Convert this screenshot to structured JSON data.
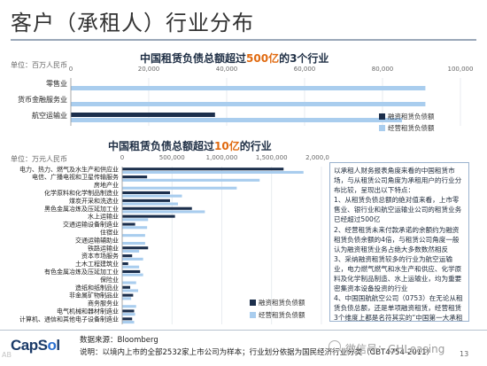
{
  "page": {
    "title": "客户（承租人）行业分布",
    "page_number": "13"
  },
  "chart_data": [
    {
      "type": "bar",
      "orientation": "horizontal",
      "stacked": false,
      "title_parts": [
        "中国租赁负债总额超过",
        "500亿",
        "的3个行业"
      ],
      "unit_label": "单位：百万人民币",
      "xlim": [
        0,
        100000
      ],
      "ticks": [
        "0",
        "20,000",
        "40,000",
        "60,000",
        "80,000",
        "100,000"
      ],
      "categories": [
        "零售业",
        "货币金融服务业",
        "航空运输业"
      ],
      "series": [
        {
          "name": "融资租赁负债额",
          "color": "#1c2f4c",
          "values": [
            0,
            0,
            37000
          ]
        },
        {
          "name": "经营租赁负债额",
          "color": "#a9cdee",
          "values": [
            91000,
            91000,
            85000
          ]
        }
      ],
      "legend_position": "bottom-right"
    },
    {
      "type": "bar",
      "orientation": "horizontal",
      "stacked": false,
      "title_parts": [
        "中国租赁负债总额超过",
        "10亿",
        "的行业"
      ],
      "unit_label": "单位：万元人民币",
      "xlim": [
        0,
        2000000
      ],
      "ticks": [
        "0",
        "500,000",
        "1,000,000",
        "1,500,000",
        "2,000,000"
      ],
      "categories": [
        "电力、热力、燃气及水生产和供应业",
        "电信、广播电视和卫星传输服务",
        "房地产业",
        "化学原料和化学制品制造业",
        "煤炭开采和洗选业",
        "黑色金属冶炼及压延加工业",
        "水上运输业",
        "交通运输设备制造业",
        "住宿业",
        "交通运输辅助业",
        "铁路运输业",
        "资本市场服务",
        "土木工程建筑业",
        "有色金属冶炼及压延加工业",
        "保险业",
        "造纸和纸制品业",
        "非金属矿物制品业",
        "商务服务业",
        "电气机械和器材制造业",
        "计算机、通信和其他电子设备制造业"
      ],
      "series": [
        {
          "name": "融资租赁负债额",
          "color": "#1c2f4c",
          "values": [
            1620000,
            250000,
            0,
            480000,
            480000,
            700000,
            530000,
            130000,
            0,
            0,
            260000,
            100000,
            60000,
            180000,
            0,
            80000,
            110000,
            0,
            120000,
            100000
          ]
        },
        {
          "name": "经营租赁负债额",
          "color": "#a9cdee",
          "values": [
            1820000,
            1380000,
            1150000,
            600000,
            560000,
            830000,
            260000,
            250000,
            230000,
            230000,
            170000,
            210000,
            170000,
            210000,
            140000,
            160000,
            90000,
            140000,
            130000,
            120000
          ]
        }
      ],
      "legend_position": "bottom-right"
    }
  ],
  "notes": [
    "以承租人财务报表角度来看的中国租赁市场，与从租赁公司角度为承租用户的行业分布比较，呈现出以下特点：",
    "1、从租赁负债总额的绝对值来看，上市零售业、银行业和航空运输业公司的租赁业务已经超过500亿",
    "2、经营租赁未来付款承诺的余额约为融资租赁负债余额的4倍，与租赁公司角度一般认为融资租赁业务占绝大多数数然相反",
    "3、采纳融资租赁较多的行业为航空运输业，电力燃气燃气和水生产和供应、化学原料及化学制品制造、水上运输业，均为重要密集资本设备投资的行业",
    "4、中国国航航空公司（0753）在无论从租赁负债总额，还是单项融资租赁，经营租赁3个维度上都是名符其实的“中国第一大承租人”，其单家企业租赁总负债超过500亿"
  ],
  "footer": {
    "logo_text_a": "CapS",
    "logo_text_b": "o",
    "logo_text_c": "l",
    "source_line": "数据来源：Bloomberg",
    "note_line": "说明：以境内上市的全部2532家上市公司为样本；行业划分依据为国民经济行业分类（GBT4754-2011）",
    "watermark": "微信号：GHLeasing",
    "corner_watermark": "AB"
  }
}
